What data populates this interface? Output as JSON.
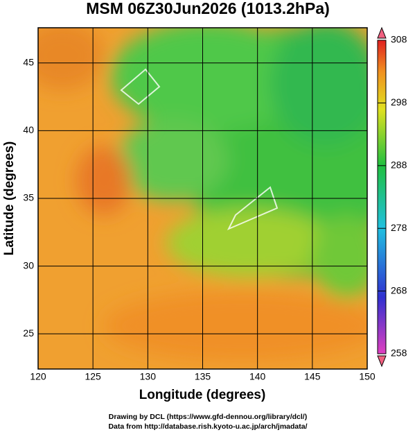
{
  "chart_data": {
    "type": "map",
    "title": "MSM 06Z30Jun2026 (1013.2hPa)",
    "x_label": "Longitude (degrees)",
    "y_label": "Latitude  (degrees)",
    "xlim": [
      120,
      150
    ],
    "ylim": [
      22.4,
      47.6
    ],
    "xticks": [
      120,
      125,
      130,
      135,
      140,
      145,
      150
    ],
    "yticks": [
      25,
      30,
      35,
      40,
      45
    ],
    "grid": true,
    "colorbar": {
      "lim": [
        258,
        308
      ],
      "ticks": [
        258,
        268,
        278,
        288,
        298,
        308
      ]
    },
    "credits": [
      "Drawing by DCL (https://www.gfd-dennou.org/library/dcl/)",
      "Data from http://database.rish.kyoto-u.ac.jp/arch/jmadata/"
    ]
  }
}
